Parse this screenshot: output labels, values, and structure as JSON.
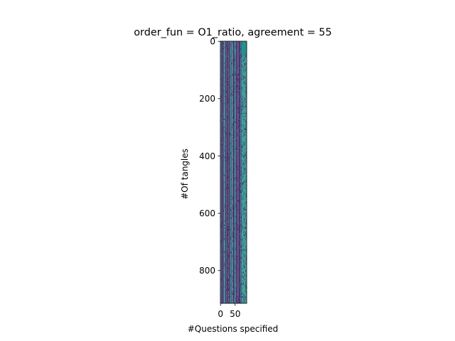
{
  "chart_data": {
    "type": "heatmap",
    "title": "order_fun = O1_ratio, agreement = 55",
    "xlabel": "#Questions specified",
    "ylabel": "#Of tangles",
    "xlim": [
      -0.5,
      89.5
    ],
    "ylim": [
      914.5,
      -0.5
    ],
    "x_ticks": [
      0,
      50
    ],
    "y_ticks": [
      0,
      200,
      400,
      600,
      800
    ],
    "n_columns": 90,
    "n_rows": 915,
    "value_range": [
      0,
      2
    ],
    "value_colors": [
      "#440154",
      "#21918c",
      "#fde725"
    ],
    "grid": false,
    "legend": "none"
  }
}
